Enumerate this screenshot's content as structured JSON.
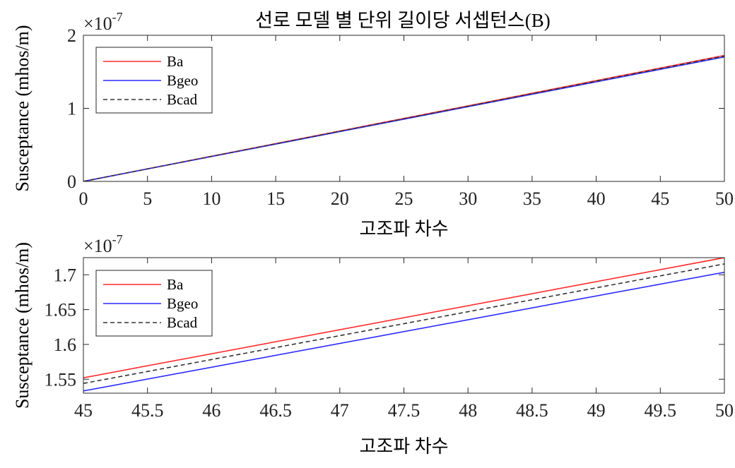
{
  "title": "선로 모델 별 단위 길이당 서셉턴스(B)",
  "chart_data": [
    {
      "type": "line",
      "title": "선로 모델 별 단위 길이당 서셉턴스(B)",
      "xlabel": "고조파 차수",
      "ylabel": "Susceptance (mhos/m)",
      "exponent_prefix": "×10",
      "exponent_power": "-7",
      "xlim": [
        0,
        50
      ],
      "ylim": [
        0,
        2
      ],
      "y_scale": 1e-07,
      "x_ticks": [
        0,
        5,
        10,
        15,
        20,
        25,
        30,
        35,
        40,
        45,
        50
      ],
      "x_tick_labels": [
        "0",
        "5",
        "10",
        "15",
        "20",
        "25",
        "30",
        "35",
        "40",
        "45",
        "50"
      ],
      "y_ticks": [
        0,
        1,
        2
      ],
      "y_tick_labels": [
        "0",
        "1",
        "2"
      ],
      "grid": false,
      "legend_position": "top-left",
      "series": [
        {
          "name": "Ba",
          "color": "#ff2a2a",
          "style": "solid",
          "x": [
            0,
            50
          ],
          "y": [
            0,
            1.7246
          ]
        },
        {
          "name": "Bgeo",
          "color": "#2a2aff",
          "style": "solid",
          "x": [
            0,
            50
          ],
          "y": [
            0,
            1.7036
          ]
        },
        {
          "name": "Bcad",
          "color": "#333333",
          "style": "dashed",
          "x": [
            0,
            50
          ],
          "y": [
            0,
            1.7156
          ]
        }
      ]
    },
    {
      "type": "line",
      "title": "",
      "xlabel": "고조파 차수",
      "ylabel": "Susceptance (mhos/m)",
      "exponent_prefix": "×10",
      "exponent_power": "-7",
      "xlim": [
        45,
        50
      ],
      "ylim": [
        1.53,
        1.7246
      ],
      "y_scale": 1e-07,
      "x_ticks": [
        45,
        45.5,
        46,
        46.5,
        47,
        47.5,
        48,
        48.5,
        49,
        49.5,
        50
      ],
      "x_tick_labels": [
        "45",
        "45.5",
        "46",
        "46.5",
        "47",
        "47.5",
        "48",
        "48.5",
        "49",
        "49.5",
        "50"
      ],
      "y_ticks": [
        1.55,
        1.6,
        1.65,
        1.7
      ],
      "y_tick_labels": [
        "1.55",
        "1.6",
        "1.65",
        "1.7"
      ],
      "grid": false,
      "legend_position": "top-left",
      "series": [
        {
          "name": "Ba",
          "color": "#ff2a2a",
          "style": "solid",
          "x": [
            45,
            50
          ],
          "y": [
            1.5521,
            1.7246
          ]
        },
        {
          "name": "Bgeo",
          "color": "#2a2aff",
          "style": "solid",
          "x": [
            45,
            50
          ],
          "y": [
            1.5332,
            1.7036
          ]
        },
        {
          "name": "Bcad",
          "color": "#333333",
          "style": "dashed",
          "x": [
            45,
            50
          ],
          "y": [
            1.544,
            1.7156
          ]
        }
      ]
    }
  ]
}
